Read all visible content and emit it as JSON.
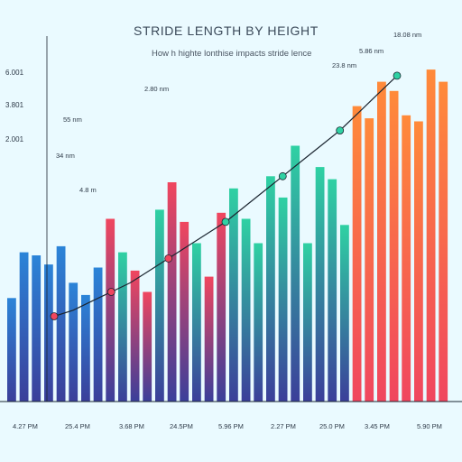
{
  "chart_data": {
    "type": "bar",
    "title": "STRIDE LENGTH BY HEIGHT",
    "subtitle": "How h highte lonthise impacts  stride lence",
    "y_ticks": [
      "6.001",
      "3.801",
      "2.001"
    ],
    "x_ticks": [
      "4.27 PM",
      "25.4 PM",
      "3.68 PM",
      "24.5PM",
      "5.96 PM",
      "2.27 PM",
      "25.0 PM",
      "3.45 PM",
      "5.90 PM"
    ],
    "annotations": [
      "18.08 nm",
      "5.86 nm",
      "23.8 nm",
      "2.80 nm",
      "55 nm",
      "34 nm",
      "4.8 m"
    ],
    "values": [
      34,
      49,
      48,
      45,
      51,
      39,
      35,
      44,
      60,
      49,
      43,
      36,
      63,
      72,
      59,
      52,
      41,
      62,
      70,
      60,
      52,
      74,
      67,
      84,
      52,
      77,
      73,
      58,
      97,
      93,
      105,
      102,
      94,
      92,
      109,
      105
    ],
    "trend": [
      28,
      30,
      33,
      36,
      39,
      43,
      47,
      51,
      55,
      59,
      64,
      69,
      74,
      79,
      84,
      89,
      95,
      101,
      107
    ],
    "ylim": [
      0,
      120
    ],
    "colors": {
      "blue": "#2b84d8",
      "indigo": "#3b3f9a",
      "red": "#f0465f",
      "teal": "#2fd1a3",
      "orange": "#ff8a3a",
      "trend": "#1b2530"
    }
  }
}
